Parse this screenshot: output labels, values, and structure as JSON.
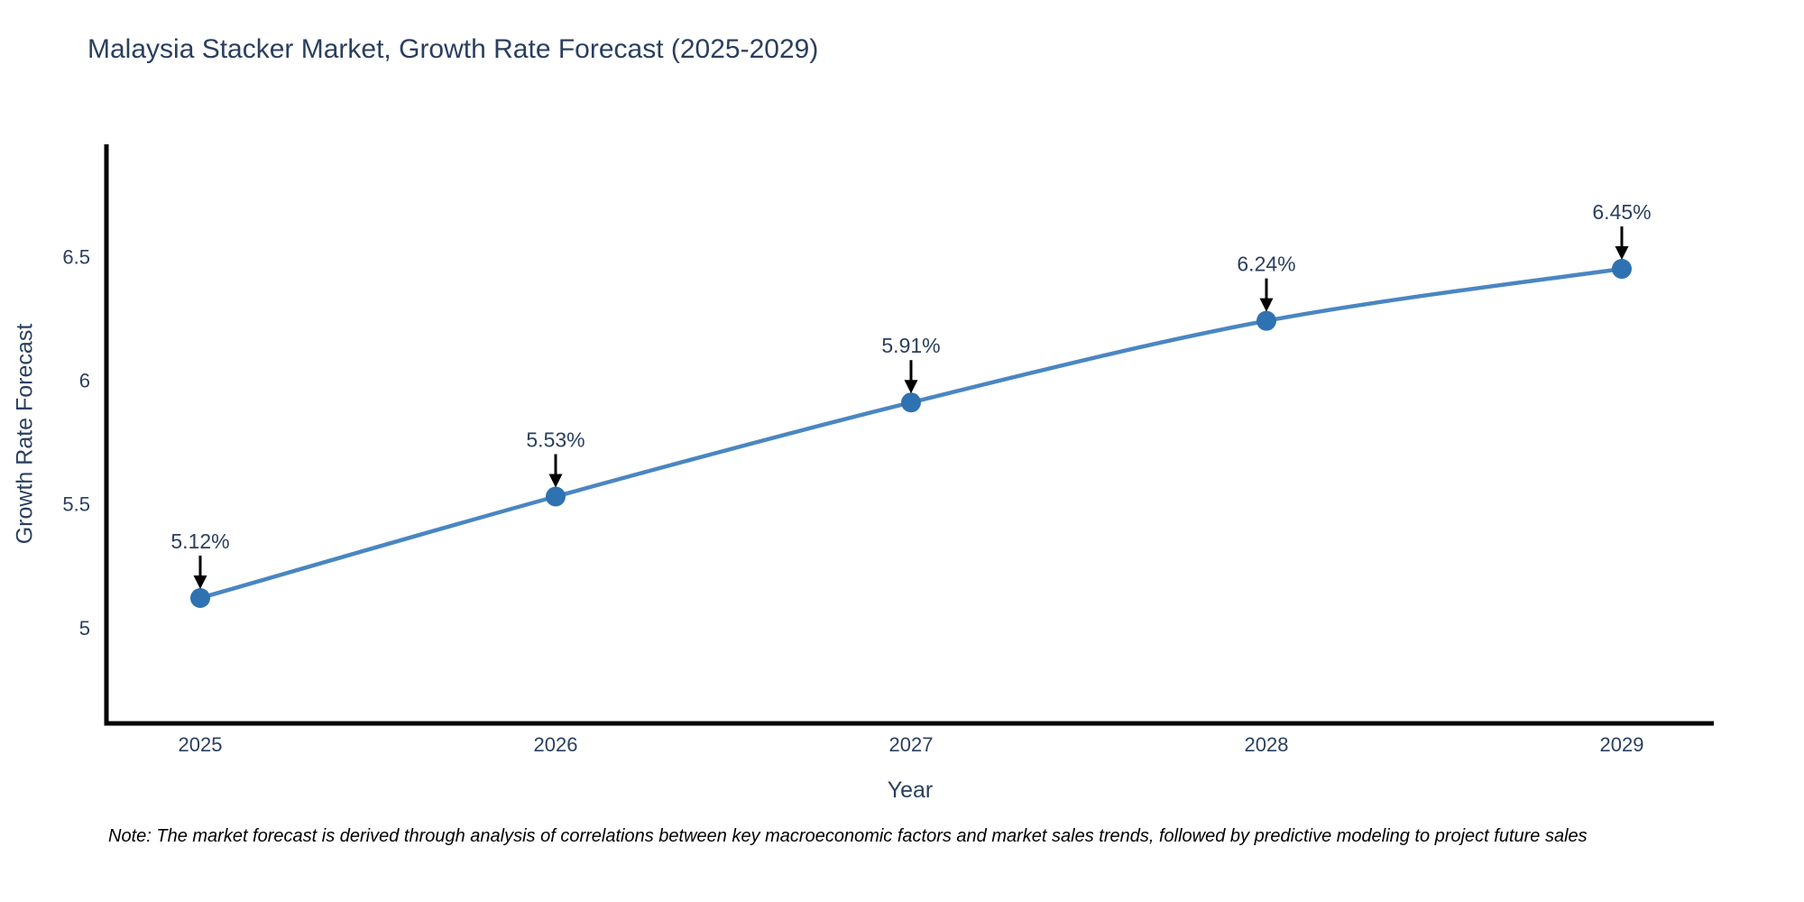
{
  "chart_data": {
    "type": "line",
    "title": "Malaysia Stacker Market, Growth Rate Forecast (2025-2029)",
    "xlabel": "Year",
    "ylabel": "Growth Rate Forecast",
    "x": [
      2025,
      2026,
      2027,
      2028,
      2029
    ],
    "y": [
      5.12,
      5.53,
      5.91,
      6.24,
      6.45
    ],
    "point_labels": [
      "5.12%",
      "5.53%",
      "5.91%",
      "6.24%",
      "6.45%"
    ],
    "xticks": [
      "2025",
      "2026",
      "2027",
      "2028",
      "2029"
    ],
    "yticks": [
      5,
      5.5,
      6,
      6.5
    ],
    "ytick_labels": [
      "5",
      "5.5",
      "6",
      "6.5"
    ],
    "xlim": [
      2024.74,
      2029.26
    ],
    "ylim": [
      4.61,
      6.95
    ],
    "grid": false,
    "legend": false,
    "line_shape": "spline",
    "colors": {
      "line": "#4a86c2",
      "marker": "#2f72b2",
      "axis_line": "#000000",
      "annotation_arrow": "#000000",
      "annotation_text": "#2a3f5f",
      "tick_text": "#2a3f5f",
      "title_text": "#2a3f5f"
    }
  },
  "note": {
    "text": "Note: The market forecast is derived through analysis of correlations between key macroeconomic factors and market sales trends, followed by predictive modeling to project future sales"
  }
}
